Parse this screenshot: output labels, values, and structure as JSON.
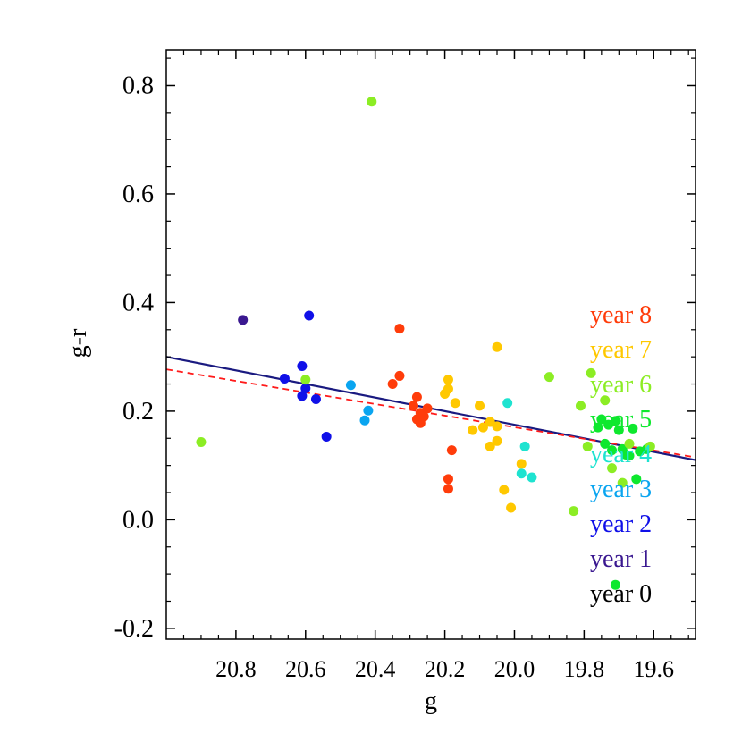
{
  "chart_data": {
    "type": "scatter",
    "title": "",
    "xlabel": "g",
    "ylabel": "g-r",
    "xlim": [
      21.0,
      19.48
    ],
    "ylim": [
      -0.22,
      0.865
    ],
    "x_ticks": [
      20.8,
      20.6,
      20.4,
      20.2,
      20.0,
      19.8,
      19.6
    ],
    "x_tick_labels": [
      "20.8",
      "20.6",
      "20.4",
      "20.2",
      "20.0",
      "19.8",
      "19.6"
    ],
    "y_ticks": [
      -0.2,
      0.0,
      0.2,
      0.4,
      0.6,
      0.8
    ],
    "y_tick_labels": [
      "-0.2",
      "0.0",
      "0.2",
      "0.4",
      "0.6",
      "0.8"
    ],
    "grid": false,
    "legend_position": "right",
    "legend": [
      {
        "label": "year 8",
        "color": "#ff3c0a"
      },
      {
        "label": "year 7",
        "color": "#ffc800"
      },
      {
        "label": "year 6",
        "color": "#8ced24"
      },
      {
        "label": "year 5",
        "color": "#0ee82e"
      },
      {
        "label": "year 4",
        "color": "#1ee3d0"
      },
      {
        "label": "year 3",
        "color": "#0aa5f0"
      },
      {
        "label": "year 2",
        "color": "#1010e8"
      },
      {
        "label": "year 1",
        "color": "#3a1890"
      },
      {
        "label": "year 0",
        "color": "#000000"
      }
    ],
    "series": [
      {
        "name": "year 1",
        "color": "#3a1890",
        "points": [
          [
            20.78,
            0.368
          ]
        ]
      },
      {
        "name": "year 2",
        "color": "#1010e8",
        "points": [
          [
            20.66,
            0.26
          ],
          [
            20.61,
            0.283
          ],
          [
            20.61,
            0.228
          ],
          [
            20.6,
            0.242
          ],
          [
            20.59,
            0.376
          ],
          [
            20.57,
            0.222
          ],
          [
            20.54,
            0.153
          ]
        ]
      },
      {
        "name": "year 3",
        "color": "#0aa5f0",
        "points": [
          [
            20.47,
            0.248
          ],
          [
            20.43,
            0.183
          ],
          [
            20.42,
            0.201
          ]
        ]
      },
      {
        "name": "year 4",
        "color": "#1ee3d0",
        "points": [
          [
            20.02,
            0.215
          ],
          [
            19.98,
            0.085
          ],
          [
            19.97,
            0.135
          ],
          [
            19.95,
            0.078
          ]
        ]
      },
      {
        "name": "year 5",
        "color": "#0ee82e",
        "points": [
          [
            19.76,
            0.17
          ],
          [
            19.75,
            0.185
          ],
          [
            19.74,
            0.14
          ],
          [
            19.73,
            0.175
          ],
          [
            19.72,
            0.128
          ],
          [
            19.71,
            0.182
          ],
          [
            19.7,
            0.165
          ],
          [
            19.69,
            0.13
          ],
          [
            19.68,
            0.12
          ],
          [
            19.67,
            0.118
          ],
          [
            19.66,
            0.168
          ],
          [
            19.65,
            0.075
          ],
          [
            19.64,
            0.126
          ],
          [
            19.62,
            0.13
          ],
          [
            19.71,
            -0.12
          ]
        ]
      },
      {
        "name": "year 6",
        "color": "#8ced24",
        "points": [
          [
            20.9,
            0.143
          ],
          [
            20.6,
            0.258
          ],
          [
            20.41,
            0.77
          ],
          [
            19.9,
            0.263
          ],
          [
            19.83,
            0.016
          ],
          [
            19.81,
            0.21
          ],
          [
            19.79,
            0.135
          ],
          [
            19.78,
            0.27
          ],
          [
            19.74,
            0.22
          ],
          [
            19.72,
            0.095
          ],
          [
            19.69,
            0.068
          ],
          [
            19.67,
            0.14
          ],
          [
            19.61,
            0.135
          ]
        ]
      },
      {
        "name": "year 7",
        "color": "#ffc800",
        "points": [
          [
            20.2,
            0.232
          ],
          [
            20.19,
            0.258
          ],
          [
            20.19,
            0.241
          ],
          [
            20.17,
            0.215
          ],
          [
            20.12,
            0.165
          ],
          [
            20.1,
            0.21
          ],
          [
            20.09,
            0.17
          ],
          [
            20.07,
            0.18
          ],
          [
            20.07,
            0.135
          ],
          [
            20.05,
            0.145
          ],
          [
            20.05,
            0.318
          ],
          [
            20.05,
            0.172
          ],
          [
            20.03,
            0.055
          ],
          [
            20.01,
            0.022
          ],
          [
            19.98,
            0.103
          ]
        ]
      },
      {
        "name": "year 8",
        "color": "#ff3c0a",
        "points": [
          [
            20.35,
            0.25
          ],
          [
            20.33,
            0.265
          ],
          [
            20.33,
            0.352
          ],
          [
            20.29,
            0.21
          ],
          [
            20.28,
            0.226
          ],
          [
            20.28,
            0.185
          ],
          [
            20.27,
            0.178
          ],
          [
            20.27,
            0.197
          ],
          [
            20.26,
            0.19
          ],
          [
            20.25,
            0.205
          ],
          [
            20.19,
            0.075
          ],
          [
            20.19,
            0.057
          ],
          [
            20.18,
            0.128
          ]
        ]
      }
    ],
    "lines": [
      {
        "name": "fit solid",
        "color": "#1a1a80",
        "style": "solid",
        "points": [
          [
            21.0,
            0.3
          ],
          [
            19.48,
            0.11
          ]
        ]
      },
      {
        "name": "fit dashed",
        "color": "#ff1a1a",
        "style": "dashed",
        "points": [
          [
            21.0,
            0.277
          ],
          [
            19.48,
            0.115
          ]
        ]
      }
    ]
  }
}
